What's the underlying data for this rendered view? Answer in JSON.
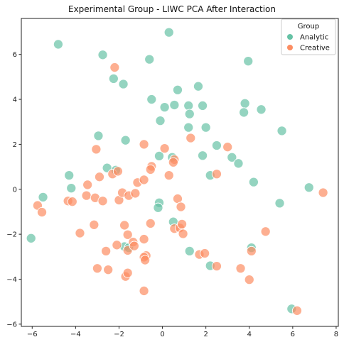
{
  "chart_data": {
    "type": "scatter",
    "title": "Experimental Group - LIWC PCA After Interaction",
    "xlabel": "",
    "ylabel": "",
    "xlim": [
      -6.5,
      8.1
    ],
    "ylim": [
      -6.1,
      7.6
    ],
    "x_ticks": [
      -6,
      -4,
      -2,
      0,
      2,
      4,
      6,
      8
    ],
    "y_ticks": [
      -6,
      -4,
      -2,
      0,
      2,
      4,
      6
    ],
    "grid": false,
    "legend": {
      "title": "Group",
      "position": "top-right"
    },
    "series": [
      {
        "name": "Analytic",
        "color": "#66c2a5",
        "points": [
          [
            -4.8,
            6.45
          ],
          [
            -2.75,
            5.98
          ],
          [
            -0.6,
            5.78
          ],
          [
            0.3,
            6.98
          ],
          [
            3.95,
            5.7
          ],
          [
            -2.25,
            4.92
          ],
          [
            -1.8,
            4.68
          ],
          [
            -0.5,
            4.0
          ],
          [
            0.1,
            3.65
          ],
          [
            0.55,
            3.75
          ],
          [
            0.7,
            4.42
          ],
          [
            1.2,
            3.72
          ],
          [
            1.25,
            3.35
          ],
          [
            1.65,
            4.58
          ],
          [
            1.85,
            3.72
          ],
          [
            3.8,
            3.82
          ],
          [
            3.75,
            3.42
          ],
          [
            4.55,
            3.55
          ],
          [
            -0.1,
            3.05
          ],
          [
            1.2,
            2.75
          ],
          [
            2.0,
            2.75
          ],
          [
            5.5,
            2.6
          ],
          [
            -2.95,
            2.38
          ],
          [
            -1.7,
            2.18
          ],
          [
            2.5,
            1.95
          ],
          [
            1.85,
            1.5
          ],
          [
            3.2,
            1.42
          ],
          [
            3.5,
            1.15
          ],
          [
            -0.15,
            1.48
          ],
          [
            0.45,
            1.42
          ],
          [
            -2.55,
            0.95
          ],
          [
            -2.15,
            0.85
          ],
          [
            -4.3,
            0.62
          ],
          [
            2.2,
            0.62
          ],
          [
            -4.2,
            0.05
          ],
          [
            -5.5,
            -0.35
          ],
          [
            4.2,
            0.32
          ],
          [
            6.75,
            0.08
          ],
          [
            5.4,
            -0.62
          ],
          [
            -0.15,
            -0.6
          ],
          [
            -0.2,
            -0.82
          ],
          [
            0.5,
            -1.45
          ],
          [
            -6.05,
            -2.18
          ],
          [
            -1.75,
            -2.55
          ],
          [
            -1.55,
            -2.6
          ],
          [
            1.25,
            -2.75
          ],
          [
            2.2,
            -3.4
          ],
          [
            4.1,
            -2.6
          ],
          [
            5.95,
            -5.32
          ]
        ]
      },
      {
        "name": "Creative",
        "color": "#fc8d62",
        "points": [
          [
            -2.2,
            5.42
          ],
          [
            1.3,
            2.28
          ],
          [
            3.0,
            1.88
          ],
          [
            0.1,
            1.82
          ],
          [
            -0.85,
            2.0
          ],
          [
            -3.05,
            1.78
          ],
          [
            -0.5,
            1.02
          ],
          [
            -0.55,
            0.88
          ],
          [
            0.55,
            1.32
          ],
          [
            0.5,
            1.2
          ],
          [
            -3.45,
            0.2
          ],
          [
            -2.9,
            0.55
          ],
          [
            -2.3,
            0.68
          ],
          [
            -2.05,
            0.8
          ],
          [
            -1.15,
            0.3
          ],
          [
            -0.85,
            0.42
          ],
          [
            0.3,
            0.62
          ],
          [
            2.5,
            0.68
          ],
          [
            -5.75,
            -0.72
          ],
          [
            -5.55,
            -1.02
          ],
          [
            -4.35,
            -0.52
          ],
          [
            -4.15,
            -0.55
          ],
          [
            -3.5,
            -0.28
          ],
          [
            -3.1,
            -0.38
          ],
          [
            -2.75,
            -0.52
          ],
          [
            -2.0,
            -0.48
          ],
          [
            -1.85,
            -0.15
          ],
          [
            -1.55,
            -0.28
          ],
          [
            -1.25,
            -0.18
          ],
          [
            0.7,
            -0.42
          ],
          [
            0.85,
            -0.78
          ],
          [
            -3.8,
            -1.95
          ],
          [
            -3.15,
            -1.58
          ],
          [
            -1.75,
            -1.6
          ],
          [
            -1.6,
            -2.02
          ],
          [
            -0.55,
            -1.52
          ],
          [
            0.55,
            -1.75
          ],
          [
            0.8,
            -1.72
          ],
          [
            0.95,
            -1.98
          ],
          [
            0.9,
            -1.55
          ],
          [
            -0.85,
            -2.22
          ],
          [
            -2.6,
            -2.75
          ],
          [
            -2.1,
            -2.48
          ],
          [
            -1.6,
            -2.72
          ],
          [
            -1.35,
            -2.35
          ],
          [
            -1.3,
            -2.52
          ],
          [
            -0.75,
            -2.95
          ],
          [
            -3.0,
            -3.52
          ],
          [
            -2.5,
            -3.58
          ],
          [
            -0.85,
            -3.02
          ],
          [
            -0.8,
            -3.15
          ],
          [
            -1.7,
            -3.88
          ],
          [
            -1.6,
            -3.72
          ],
          [
            -0.85,
            -4.52
          ],
          [
            1.7,
            -2.9
          ],
          [
            1.95,
            -2.85
          ],
          [
            2.5,
            -3.42
          ],
          [
            3.6,
            -3.52
          ],
          [
            4.1,
            -2.75
          ],
          [
            4.75,
            -1.88
          ],
          [
            4.0,
            -4.02
          ],
          [
            6.2,
            -5.4
          ],
          [
            7.4,
            -0.15
          ]
        ]
      }
    ]
  }
}
